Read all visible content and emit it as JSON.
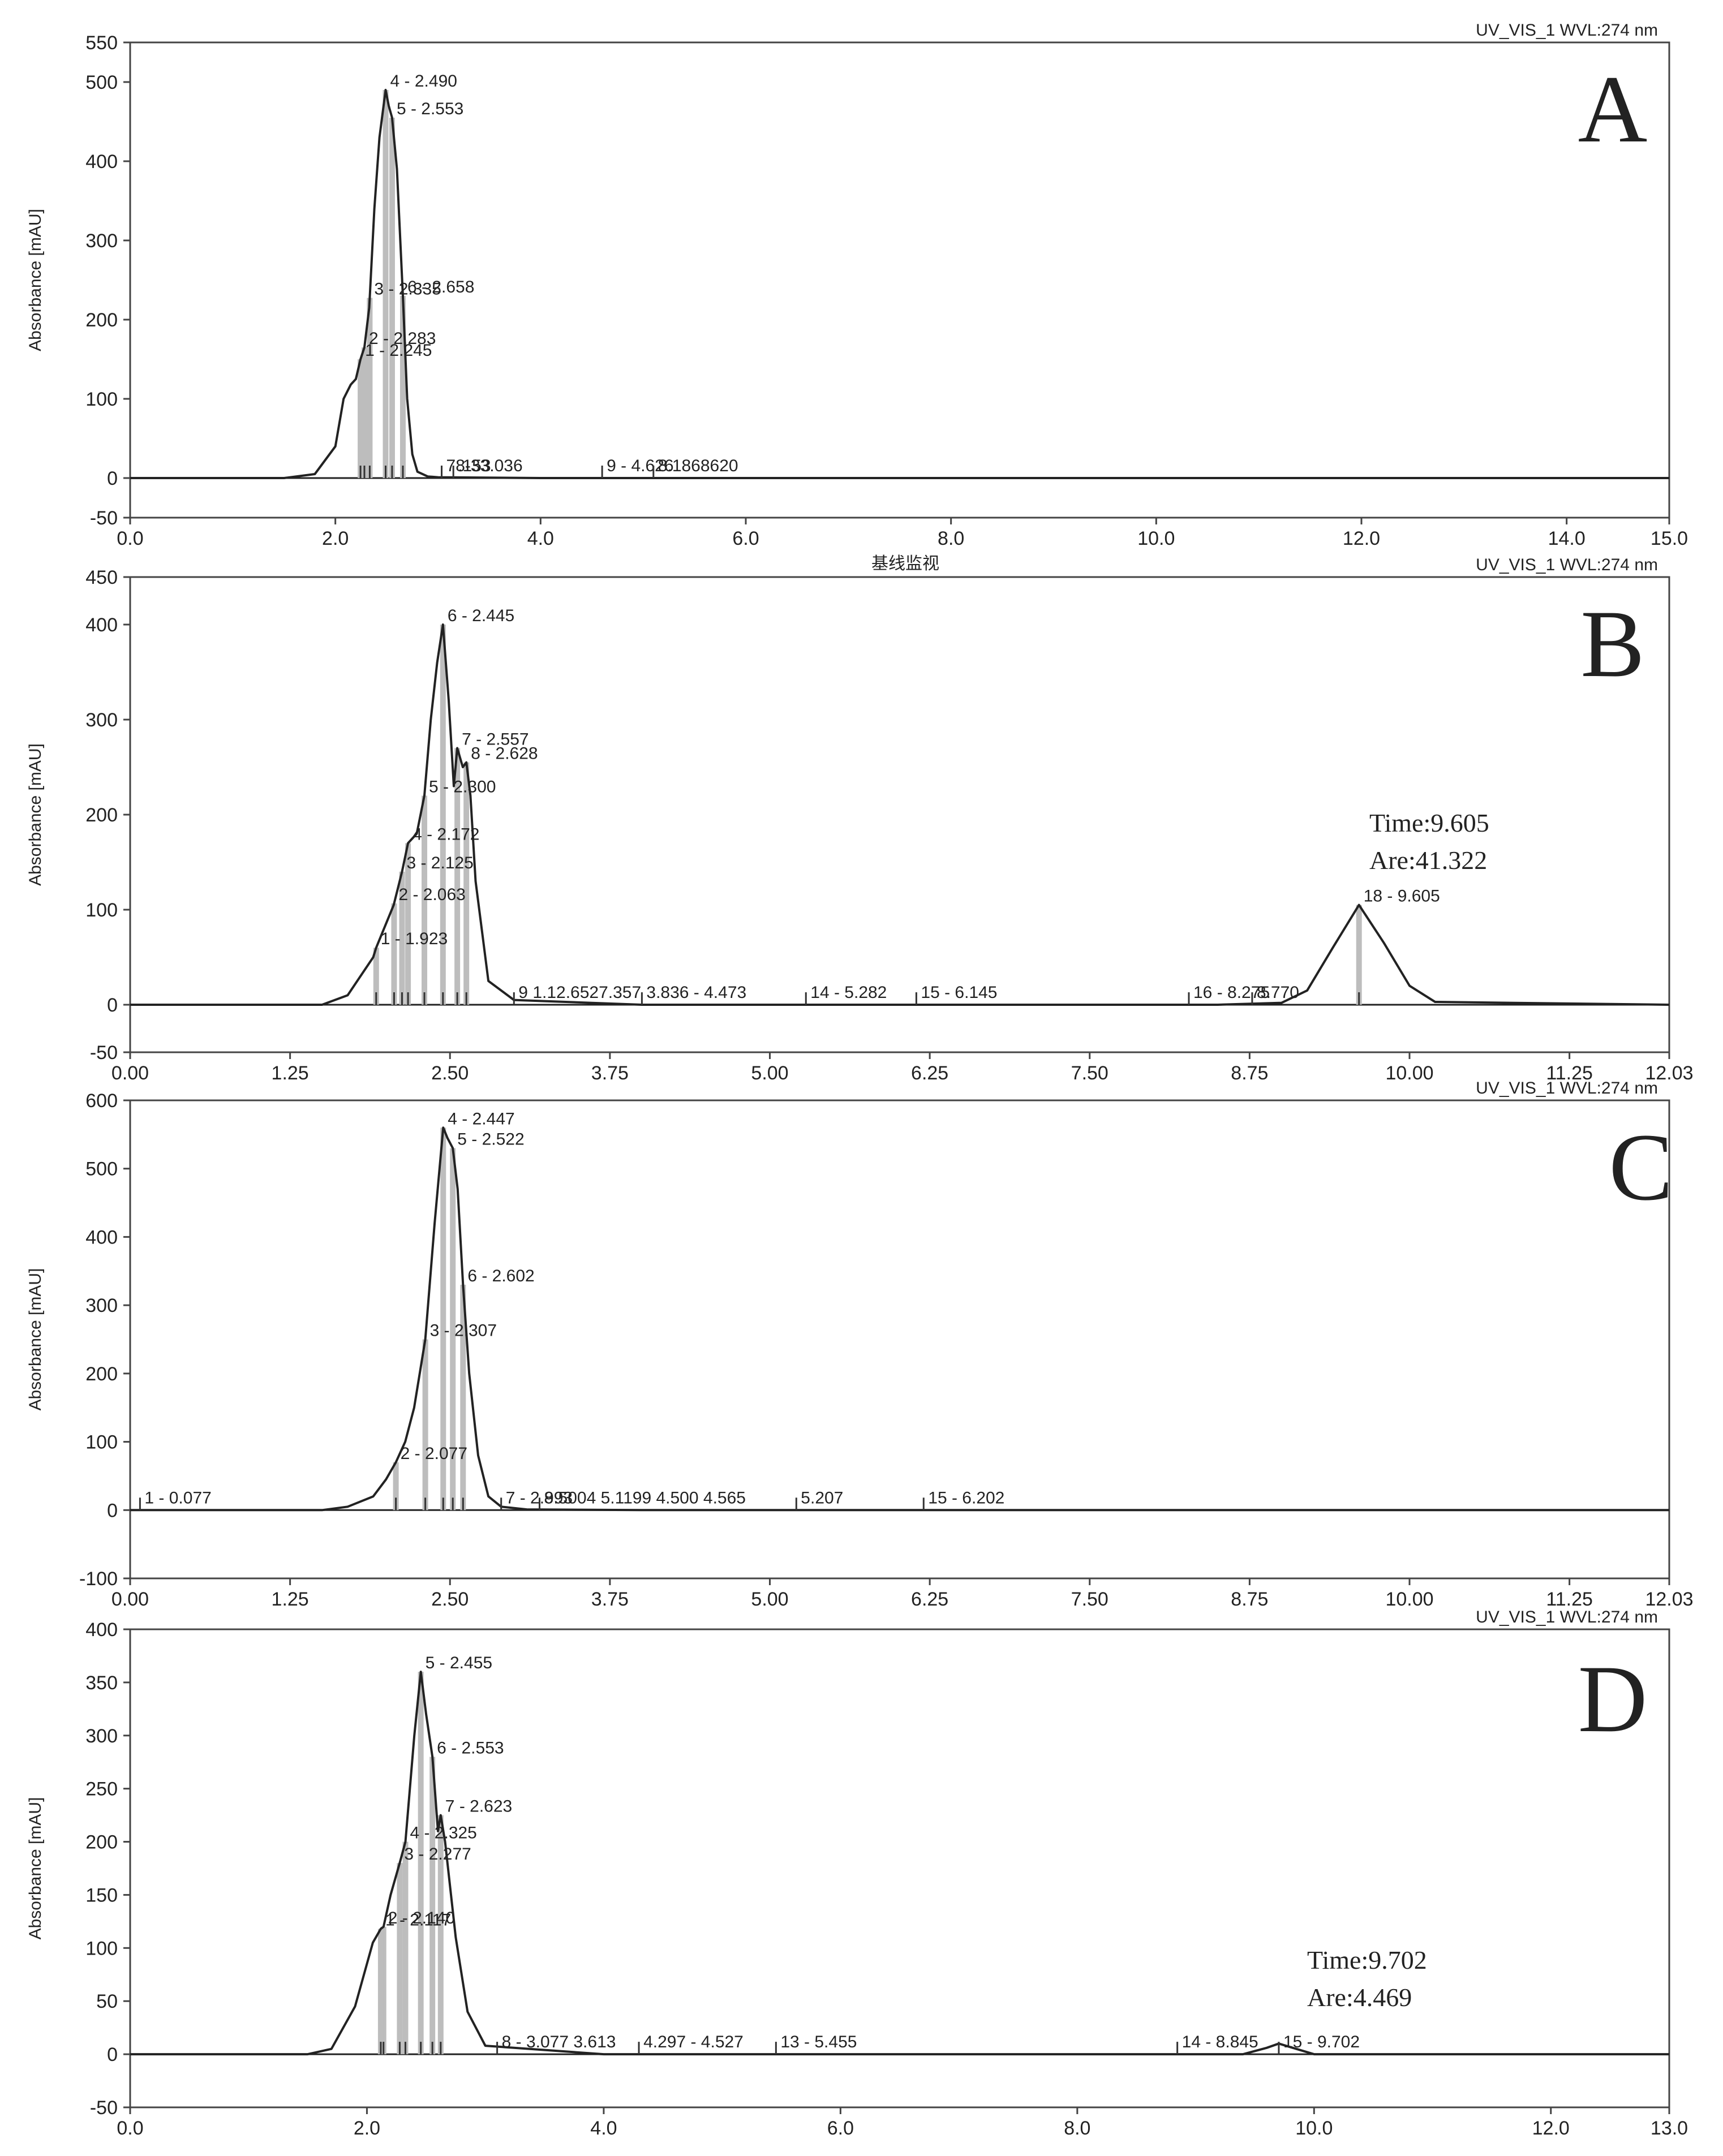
{
  "common": {
    "channel_label": "UV_VIS_1 WVL:274 nm",
    "ylabel": "Absorbance [mAU]"
  },
  "chart_data": [
    {
      "type": "line",
      "panel_label": "A",
      "header": "",
      "title": "UV_VIS_1 WVL:274 nm",
      "xlabel": "",
      "ylabel": "Absorbance [mAU]",
      "xlim": [
        0,
        15
      ],
      "ylim": [
        -50,
        550
      ],
      "xticks": [
        0,
        2,
        4,
        6,
        8,
        10,
        12,
        14,
        15
      ],
      "xtick_labels": [
        "0.0",
        "2.0",
        "4.0",
        "6.0",
        "8.0",
        "10.0",
        "12.0",
        "14.0",
        "15.0"
      ],
      "yticks": [
        550,
        500,
        400,
        300,
        200,
        100,
        0,
        -50
      ],
      "ytick_labels": [
        "550",
        "500",
        "400",
        "300",
        "200",
        "100",
        "0",
        "-50"
      ],
      "trace_x": [
        0,
        1.5,
        1.8,
        2.0,
        2.08,
        2.15,
        2.2,
        2.245,
        2.283,
        2.33,
        2.38,
        2.43,
        2.49,
        2.52,
        2.553,
        2.6,
        2.658,
        2.7,
        2.75,
        2.8,
        2.9,
        3.0,
        4.0,
        6.0,
        8.0,
        10.0,
        15.0
      ],
      "trace_y": [
        0,
        0,
        5,
        40,
        100,
        118,
        125,
        150,
        165,
        215,
        340,
        430,
        490,
        470,
        455,
        390,
        230,
        100,
        30,
        8,
        2,
        1,
        0,
        0,
        0,
        0,
        0
      ],
      "peak_labels": [
        {
          "rt": 2.49,
          "label": "4 - 2.490"
        },
        {
          "rt": 2.553,
          "label": "5 - 2.553"
        },
        {
          "rt": 2.658,
          "label": "6 - 2.658"
        },
        {
          "rt": 2.335,
          "label": "3 - 2.335"
        },
        {
          "rt": 2.283,
          "label": "2 - 2.283"
        },
        {
          "rt": 2.245,
          "label": "1 - 2.245"
        },
        {
          "rt": 3.036,
          "label": "78-33.036"
        },
        {
          "rt": 3.15,
          "label": ".153"
        },
        {
          "rt": 4.6,
          "label": "9 - 4.626"
        },
        {
          "rt": 5.1,
          "label": "8.1868620"
        }
      ],
      "annotations": []
    },
    {
      "type": "line",
      "panel_label": "B",
      "header": "基线监视",
      "title": "UV_VIS_1 WVL:274 nm",
      "xlabel": "",
      "ylabel": "Absorbance [mAU]",
      "xlim": [
        0,
        12.03
      ],
      "ylim": [
        -50,
        450
      ],
      "xticks": [
        0,
        1.25,
        2.5,
        3.75,
        5.0,
        6.25,
        7.5,
        8.75,
        10.0,
        11.25,
        12.03
      ],
      "xtick_labels": [
        "0.00",
        "1.25",
        "2.50",
        "3.75",
        "5.00",
        "6.25",
        "7.50",
        "8.75",
        "10.00",
        "11.25",
        "12.03"
      ],
      "yticks": [
        450,
        400,
        300,
        200,
        100,
        0,
        -50
      ],
      "ytick_labels": [
        "450",
        "400",
        "300",
        "200",
        "100",
        "0",
        "-50"
      ],
      "trace_x": [
        0,
        1.5,
        1.7,
        1.9,
        1.923,
        2.06,
        2.125,
        2.172,
        2.24,
        2.3,
        2.35,
        2.4,
        2.445,
        2.49,
        2.53,
        2.557,
        2.6,
        2.628,
        2.66,
        2.7,
        2.8,
        3.0,
        4.0,
        8.5,
        9.0,
        9.2,
        9.4,
        9.605,
        9.8,
        10.0,
        10.2,
        12.03
      ],
      "trace_y": [
        0,
        0,
        10,
        50,
        60,
        105,
        140,
        170,
        180,
        220,
        300,
        360,
        400,
        320,
        230,
        270,
        250,
        255,
        220,
        130,
        25,
        5,
        0,
        0,
        2,
        15,
        60,
        105,
        65,
        20,
        3,
        0
      ],
      "peak_labels": [
        {
          "rt": 2.445,
          "label": "6 - 2.445"
        },
        {
          "rt": 2.628,
          "label": "8 - 2.628"
        },
        {
          "rt": 2.557,
          "label": "7 - 2.557"
        },
        {
          "rt": 2.3,
          "label": "5 - 2.300"
        },
        {
          "rt": 2.172,
          "label": "4 - 2.172"
        },
        {
          "rt": 2.125,
          "label": "3 - 2.125"
        },
        {
          "rt": 2.063,
          "label": "2 - 2.063"
        },
        {
          "rt": 1.923,
          "label": "1 - 1.923"
        },
        {
          "rt": 3.0,
          "label": "9 1.12.6527.357"
        },
        {
          "rt": 4.0,
          "label": "3.836 - 4.473"
        },
        {
          "rt": 5.282,
          "label": "14 - 5.282"
        },
        {
          "rt": 6.145,
          "label": "15 - 6.145"
        },
        {
          "rt": 8.275,
          "label": "16 - 8.275"
        },
        {
          "rt": 8.77,
          "label": "8.770"
        },
        {
          "rt": 9.605,
          "label": "18 - 9.605"
        }
      ],
      "annotations": [
        {
          "time_label": "Time:9.605",
          "area_label": "Are:41.322"
        }
      ]
    },
    {
      "type": "line",
      "panel_label": "C",
      "header": "",
      "title": "UV_VIS_1 WVL:274 nm",
      "xlabel": "",
      "ylabel": "Absorbance [mAU]",
      "xlim": [
        0,
        12.03
      ],
      "ylim": [
        -100,
        600
      ],
      "xticks": [
        0,
        1.25,
        2.5,
        3.75,
        5.0,
        6.25,
        7.5,
        8.75,
        10.0,
        11.25,
        12.03
      ],
      "xtick_labels": [
        "0.00",
        "1.25",
        "2.50",
        "3.75",
        "5.00",
        "6.25",
        "7.50",
        "8.75",
        "10.00",
        "11.25",
        "12.03"
      ],
      "yticks": [
        600,
        500,
        400,
        300,
        200,
        100,
        0,
        -100
      ],
      "ytick_labels": [
        "600",
        "500",
        "400",
        "300",
        "200",
        "100",
        "0",
        "-100"
      ],
      "trace_x": [
        0,
        1.5,
        1.7,
        1.9,
        2.0,
        2.077,
        2.15,
        2.22,
        2.307,
        2.38,
        2.447,
        2.48,
        2.522,
        2.56,
        2.602,
        2.65,
        2.72,
        2.8,
        2.9,
        3.1,
        4.0,
        8.0,
        12.03
      ],
      "trace_y": [
        0,
        0,
        5,
        20,
        45,
        70,
        100,
        150,
        250,
        420,
        560,
        545,
        530,
        470,
        330,
        200,
        80,
        20,
        5,
        1,
        0,
        0,
        0
      ],
      "peak_labels": [
        {
          "rt": 2.447,
          "label": "4 - 2.447"
        },
        {
          "rt": 2.522,
          "label": "5 - 2.522"
        },
        {
          "rt": 2.602,
          "label": "6 - 2.602"
        },
        {
          "rt": 2.307,
          "label": "3 - 2.307"
        },
        {
          "rt": 2.077,
          "label": "2 - 2.077"
        },
        {
          "rt": 0.077,
          "label": "1 - 0.077"
        },
        {
          "rt": 2.9,
          "label": "7 - 2.993"
        },
        {
          "rt": 3.2,
          "label": "8.5004 5.1199 4.500 4.565"
        },
        {
          "rt": 5.207,
          "label": "5.207"
        },
        {
          "rt": 6.202,
          "label": "15 - 6.202"
        }
      ],
      "annotations": []
    },
    {
      "type": "line",
      "panel_label": "D",
      "header": "",
      "title": "UV_VIS_1 WVL:274 nm",
      "xlabel": "",
      "ylabel": "Absorbance [mAU]",
      "xlim": [
        0,
        13
      ],
      "ylim": [
        -50,
        400
      ],
      "xticks": [
        0,
        2,
        4,
        6,
        8,
        10,
        12,
        13
      ],
      "xtick_labels": [
        "0.0",
        "2.0",
        "4.0",
        "6.0",
        "8.0",
        "10.0",
        "12.0",
        "13.0"
      ],
      "yticks": [
        400,
        350,
        300,
        250,
        200,
        150,
        100,
        50,
        0,
        -50
      ],
      "ytick_labels": [
        "400",
        "350",
        "300",
        "250",
        "200",
        "150",
        "100",
        "50",
        "0",
        "-50"
      ],
      "trace_x": [
        0,
        1.5,
        1.7,
        1.9,
        2.05,
        2.117,
        2.14,
        2.2,
        2.277,
        2.325,
        2.4,
        2.455,
        2.5,
        2.553,
        2.6,
        2.623,
        2.66,
        2.75,
        2.85,
        3.0,
        4.0,
        9.4,
        9.6,
        9.702,
        9.85,
        10.0,
        13.0
      ],
      "trace_y": [
        0,
        0,
        5,
        45,
        105,
        118,
        120,
        150,
        180,
        200,
        300,
        360,
        320,
        280,
        210,
        225,
        200,
        110,
        40,
        8,
        0,
        0,
        6,
        10,
        5,
        0,
        0
      ],
      "peak_labels": [
        {
          "rt": 2.455,
          "label": "5 - 2.455"
        },
        {
          "rt": 2.553,
          "label": "6 - 2.553"
        },
        {
          "rt": 2.623,
          "label": "7 - 2.623"
        },
        {
          "rt": 2.325,
          "label": "4 - 2.325"
        },
        {
          "rt": 2.277,
          "label": "3 - 2.277"
        },
        {
          "rt": 2.14,
          "label": "2 - 2.140"
        },
        {
          "rt": 2.117,
          "label": "1 - 2.117"
        },
        {
          "rt": 3.1,
          "label": "8 - 3.077 3.613"
        },
        {
          "rt": 4.297,
          "label": "4.297 - 4.527"
        },
        {
          "rt": 5.455,
          "label": "13 - 5.455"
        },
        {
          "rt": 8.845,
          "label": "14 - 8.845"
        },
        {
          "rt": 9.702,
          "label": "15 - 9.702"
        }
      ],
      "annotations": [
        {
          "time_label": "Time:9.702",
          "area_label": "Are:4.469"
        }
      ]
    }
  ]
}
